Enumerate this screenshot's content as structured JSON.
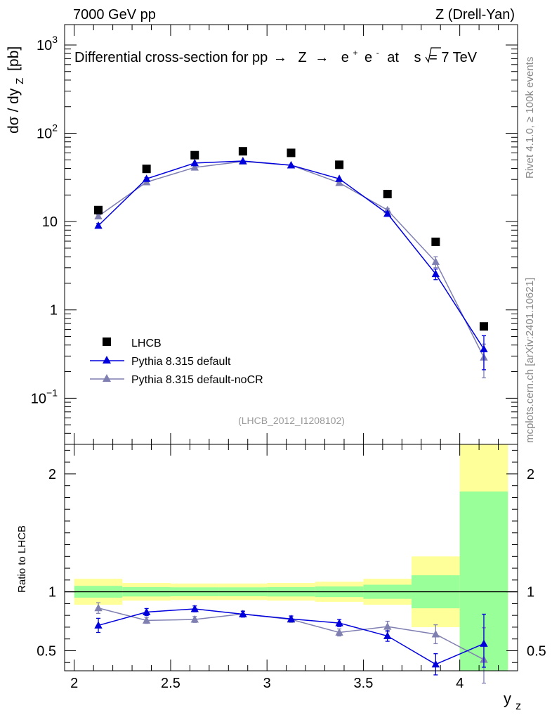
{
  "header": {
    "left": "7000 GeV pp",
    "right": "Z (Drell-Yan)"
  },
  "side_labels": {
    "rivet": "Rivet 4.1.0, ≥ 100k events",
    "mcplots": "mcplots.cern.ch [arXiv:2401.10621]"
  },
  "colors": {
    "data": "#000000",
    "pythia_default": "#0000dd",
    "pythia_nocr": "#7f7fb2",
    "band_inner": "#99ff99",
    "band_outer": "#ffff99"
  },
  "chart_data": [
    {
      "type": "scatter",
      "panel": "main",
      "title": "Differential cross-section for pp→ Z → e⁺ e⁻ at √s = 7 TeV",
      "title_parts": {
        "prefix": "Differential cross-section for pp",
        "arrow1": "→",
        "z": "Z",
        "arrow2": "→",
        "e1": "e",
        "plus": "+",
        "e2": "e",
        "minus": "-",
        "at": "at",
        "s": "s",
        "energy": "= 7 TeV"
      },
      "ylabel": "dσ / dy",
      "ylabel_sub": "Z",
      "ylabel_unit": "[pb]",
      "yscale": "log",
      "xlim": [
        1.95,
        4.3
      ],
      "ylim": [
        0.03,
        1700
      ],
      "yticks": [
        {
          "value": 1000,
          "base": "10",
          "exp": "3"
        },
        {
          "value": 100,
          "base": "10",
          "exp": "2"
        },
        {
          "value": 10,
          "base": "10",
          "exp": ""
        },
        {
          "value": 1,
          "base": "1",
          "exp": ""
        },
        {
          "value": 0.1,
          "base": "10",
          "exp": "−1"
        }
      ],
      "x": [
        2.125,
        2.375,
        2.625,
        2.875,
        3.125,
        3.375,
        3.625,
        3.875,
        4.125
      ],
      "series": [
        {
          "name": "LHCB",
          "marker": "square",
          "values": [
            13.5,
            39.5,
            56.5,
            62.5,
            60.0,
            44.0,
            20.5,
            5.9,
            0.65
          ]
        },
        {
          "name": "Pythia 8.315 default",
          "marker": "triangle",
          "values": [
            9.0,
            30.5,
            46.0,
            48.5,
            43.5,
            30.5,
            12.3,
            2.55,
            0.36
          ],
          "err_lo": [
            0.5,
            1.0,
            1.0,
            1.0,
            1.0,
            0.8,
            0.6,
            0.35,
            0.15
          ],
          "err_hi": [
            0.5,
            1.0,
            1.0,
            1.0,
            1.0,
            0.8,
            0.6,
            0.35,
            0.15
          ]
        },
        {
          "name": "Pythia 8.315 default-noCR",
          "marker": "triangle",
          "values": [
            11.5,
            28.0,
            41.0,
            48.0,
            43.5,
            27.5,
            13.5,
            3.5,
            0.29
          ],
          "err_lo": [
            0.5,
            1.0,
            1.0,
            1.0,
            1.0,
            0.8,
            0.6,
            0.5,
            0.12
          ],
          "err_hi": [
            0.5,
            1.0,
            1.0,
            1.0,
            1.0,
            0.8,
            0.6,
            0.5,
            0.12
          ]
        }
      ],
      "legend_position": "bottom-left",
      "annotation": "(LHCB_2012_I1208102)"
    },
    {
      "type": "line",
      "panel": "ratio",
      "ylabel": "Ratio to LHCB",
      "xlabel": "y",
      "xlabel_sub": "z",
      "xlim": [
        1.95,
        4.3
      ],
      "ylim": [
        0.33,
        2.25
      ],
      "xticks": [
        {
          "value": 2,
          "label": "2"
        },
        {
          "value": 2.5,
          "label": "2.5"
        },
        {
          "value": 3,
          "label": "3"
        },
        {
          "value": 3.5,
          "label": "3.5"
        },
        {
          "value": 4,
          "label": "4"
        }
      ],
      "yticks": [
        {
          "value": 0.5,
          "label": "0.5"
        },
        {
          "value": 1,
          "label": "1"
        },
        {
          "value": 2,
          "label": "2"
        }
      ],
      "bins": [
        [
          2.0,
          2.25
        ],
        [
          2.25,
          2.5
        ],
        [
          2.5,
          2.75
        ],
        [
          2.75,
          3.0
        ],
        [
          3.0,
          3.25
        ],
        [
          3.25,
          3.5
        ],
        [
          3.5,
          3.75
        ],
        [
          3.75,
          4.0
        ],
        [
          4.0,
          4.25
        ]
      ],
      "band_inner": [
        [
          0.95,
          1.05
        ],
        [
          0.96,
          1.04
        ],
        [
          0.962,
          1.038
        ],
        [
          0.962,
          1.038
        ],
        [
          0.96,
          1.04
        ],
        [
          0.955,
          1.045
        ],
        [
          0.94,
          1.06
        ],
        [
          0.86,
          1.14
        ],
        [
          0.33,
          1.85
        ]
      ],
      "band_outer": [
        [
          0.89,
          1.11
        ],
        [
          0.925,
          1.075
        ],
        [
          0.93,
          1.07
        ],
        [
          0.93,
          1.07
        ],
        [
          0.925,
          1.075
        ],
        [
          0.915,
          1.085
        ],
        [
          0.89,
          1.11
        ],
        [
          0.7,
          1.3
        ],
        [
          0.33,
          2.25
        ]
      ],
      "x": [
        2.125,
        2.375,
        2.625,
        2.875,
        3.125,
        3.375,
        3.625,
        3.875,
        4.125
      ],
      "series": [
        {
          "name": "Pythia 8.315 default",
          "values": [
            0.715,
            0.828,
            0.855,
            0.81,
            0.77,
            0.735,
            0.625,
            0.385,
            0.56
          ],
          "err_lo": [
            0.06,
            0.03,
            0.025,
            0.025,
            0.025,
            0.03,
            0.045,
            0.09,
            0.2
          ],
          "err_hi": [
            0.06,
            0.03,
            0.025,
            0.025,
            0.025,
            0.03,
            0.045,
            0.09,
            0.25
          ]
        },
        {
          "name": "Pythia 8.315 default-noCR",
          "values": [
            0.862,
            0.757,
            0.765,
            0.812,
            0.765,
            0.655,
            0.705,
            0.64,
            0.425
          ],
          "err_lo": [
            0.045,
            0.025,
            0.025,
            0.025,
            0.025,
            0.03,
            0.045,
            0.08,
            0.2
          ],
          "err_hi": [
            0.045,
            0.025,
            0.025,
            0.025,
            0.025,
            0.03,
            0.045,
            0.08,
            0.27
          ]
        }
      ]
    }
  ]
}
